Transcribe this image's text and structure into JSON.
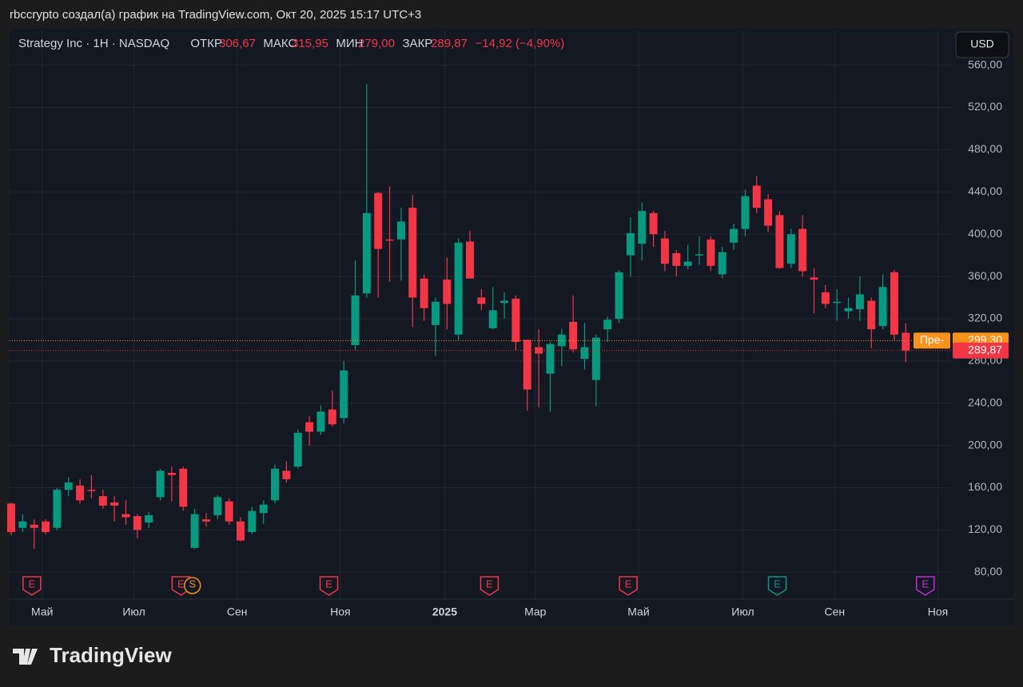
{
  "header": {
    "attribution": "rbccrypto создал(а) график на TradingView.com, Окт 20, 2025 15:17 UTC+3",
    "brand": "TradingView"
  },
  "chart_data": {
    "type": "candlestick",
    "title": "Strategy Inc · 1H · NASDAQ",
    "stats": [
      {
        "label": "ОТКР",
        "value": "306,67"
      },
      {
        "label": "МАКС",
        "value": "315,95"
      },
      {
        "label": "МИН",
        "value": "279,00"
      },
      {
        "label": "ЗАКР",
        "value": "289,87"
      }
    ],
    "change": "−14,92 (−4,90%)",
    "currency": "USD",
    "up_color": "#089981",
    "down_color": "#f23645",
    "open": [
      145,
      122,
      125,
      128,
      122,
      158,
      162,
      158,
      152,
      146,
      135,
      133,
      127,
      151,
      174,
      178,
      103,
      130,
      134,
      147,
      128,
      118,
      136,
      148,
      176,
      180,
      222,
      213,
      234,
      226,
      295,
      344,
      439,
      395,
      395,
      425,
      358,
      314,
      357,
      305,
      393,
      340,
      311,
      335,
      339,
      300,
      293,
      268,
      294,
      317,
      282,
      262,
      310,
      320,
      380,
      391,
      420,
      396,
      382,
      370,
      380,
      395,
      362,
      392,
      405,
      446,
      433,
      418,
      372,
      405,
      359,
      345,
      336,
      327,
      329,
      337,
      313,
      364,
      306.67
    ],
    "high": [
      146,
      135,
      130,
      130,
      160,
      170,
      168,
      172,
      158,
      152,
      148,
      135,
      137,
      178,
      180,
      180,
      140,
      136,
      153,
      150,
      132,
      142,
      148,
      182,
      185,
      215,
      228,
      238,
      252,
      280,
      375,
      542,
      440,
      445,
      425,
      437,
      362,
      340,
      378,
      396,
      403,
      348,
      350,
      345,
      342,
      300,
      310,
      298,
      310,
      342,
      316,
      305,
      322,
      366,
      416,
      430,
      422,
      403,
      385,
      390,
      398,
      398,
      388,
      410,
      442,
      455,
      438,
      422,
      405,
      418,
      368,
      352,
      348,
      340,
      360,
      340,
      362,
      366,
      315.95
    ],
    "low": [
      115,
      118,
      102,
      116,
      120,
      152,
      145,
      150,
      140,
      128,
      125,
      112,
      122,
      148,
      147,
      138,
      102,
      123,
      130,
      125,
      109,
      116,
      126,
      145,
      165,
      178,
      200,
      210,
      218,
      221,
      290,
      340,
      340,
      355,
      356,
      312,
      318,
      285,
      310,
      300,
      358,
      328,
      310,
      320,
      290,
      233,
      236,
      232,
      275,
      288,
      272,
      237,
      298,
      316,
      360,
      375,
      388,
      365,
      360,
      367,
      371,
      365,
      358,
      385,
      398,
      420,
      402,
      367,
      368,
      360,
      325,
      330,
      318,
      320,
      318,
      292,
      310,
      300,
      279
    ],
    "close": [
      118,
      128,
      122,
      118,
      158,
      165,
      148,
      157,
      143,
      143,
      132,
      120,
      134,
      176,
      172,
      142,
      135,
      128,
      151,
      128,
      110,
      138,
      144,
      178,
      168,
      212,
      213,
      232,
      220,
      271,
      342,
      420,
      386,
      394,
      412,
      340,
      330,
      336,
      334,
      392,
      358,
      334,
      328,
      337,
      298,
      253,
      287,
      296,
      305,
      291,
      293,
      302,
      319,
      364,
      401,
      422,
      400,
      372,
      370,
      374,
      381,
      370,
      383,
      405,
      436,
      425,
      408,
      368,
      400,
      365,
      357,
      334,
      336,
      330,
      343,
      310,
      350,
      305,
      289.87
    ],
    "ylim": [
      56,
      593
    ],
    "yticks": [
      {
        "value": 80,
        "label": "80,00"
      },
      {
        "value": 120,
        "label": "120,00"
      },
      {
        "value": 160,
        "label": "160,00"
      },
      {
        "value": 200,
        "label": "200,00"
      },
      {
        "value": 240,
        "label": "240,00"
      },
      {
        "value": 280,
        "label": "280,00"
      },
      {
        "value": 320,
        "label": "320,00"
      },
      {
        "value": 360,
        "label": "360,00"
      },
      {
        "value": 400,
        "label": "400,00"
      },
      {
        "value": 440,
        "label": "440,00"
      },
      {
        "value": 480,
        "label": "480,00"
      },
      {
        "value": 520,
        "label": "520,00"
      },
      {
        "value": 560,
        "label": "560,00"
      }
    ],
    "xticks": [
      {
        "value": 2.7,
        "label": "Май"
      },
      {
        "value": 10.7,
        "label": "Июл"
      },
      {
        "value": 19.7,
        "label": "Сен"
      },
      {
        "value": 28.7,
        "label": "Ноя"
      },
      {
        "value": 37.8,
        "label": "2025"
      },
      {
        "value": 45.7,
        "label": "Мар"
      },
      {
        "value": 54.7,
        "label": "Май"
      },
      {
        "value": 63.8,
        "label": "Июл"
      },
      {
        "value": 71.8,
        "label": "Сен"
      },
      {
        "value": 80.8,
        "label": "Ноя"
      }
    ],
    "events": [
      {
        "x": 1.8,
        "label": "E",
        "color": "#f23645"
      },
      {
        "x": 14.8,
        "label": "E",
        "color": "#f23645"
      },
      {
        "x": 15.8,
        "label": "S",
        "color": "#f7931a"
      },
      {
        "x": 27.7,
        "label": "E",
        "color": "#f23645"
      },
      {
        "x": 41.7,
        "label": "E",
        "color": "#f23645"
      },
      {
        "x": 53.8,
        "label": "E",
        "color": "#f23645"
      },
      {
        "x": 66.8,
        "label": "E",
        "color": "#089981"
      },
      {
        "x": 79.7,
        "label": "E",
        "color": "#c52ad6"
      }
    ],
    "price_lines": [
      {
        "value": 299.3,
        "label": "299,30",
        "tag": "Пре-",
        "color": "#f7931a"
      },
      {
        "value": 289.87,
        "label": "289,87",
        "color": "#f23645"
      }
    ],
    "grid": true
  }
}
